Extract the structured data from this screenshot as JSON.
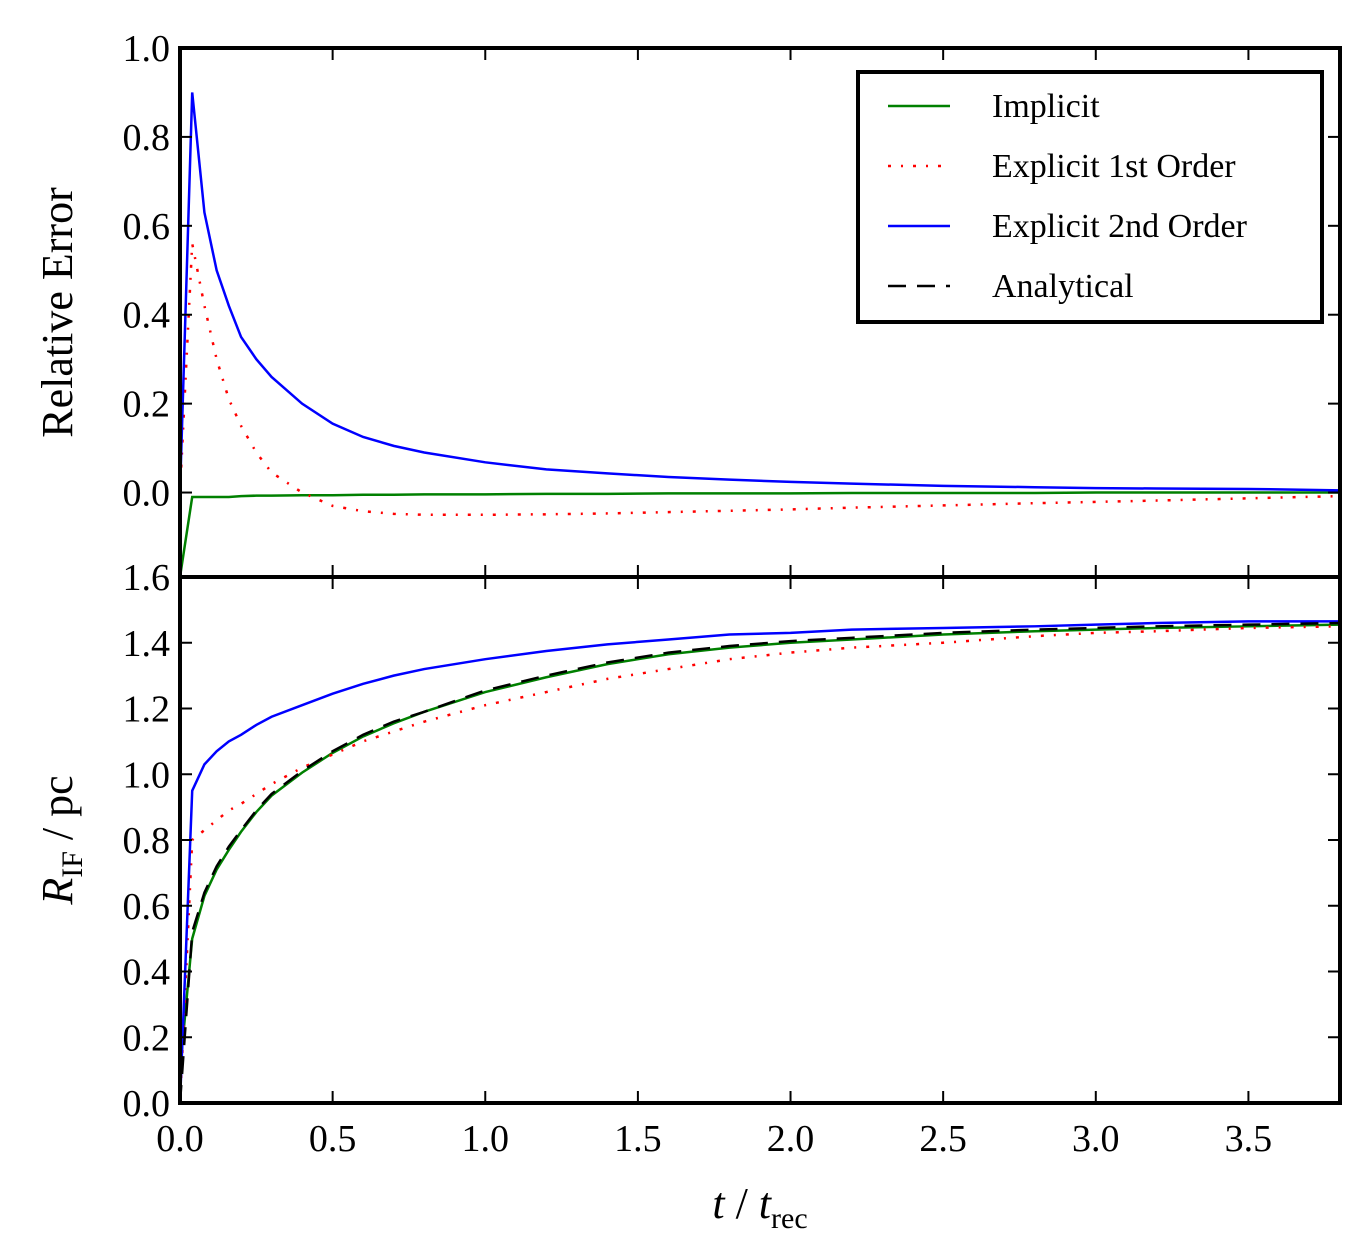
{
  "chart_data": [
    {
      "type": "line",
      "ylabel": "Relative Error",
      "legend": "upper right",
      "x": [
        0,
        0.04,
        0.08,
        0.12,
        0.16,
        0.2,
        0.25,
        0.3,
        0.4,
        0.5,
        0.6,
        0.7,
        0.8,
        1.0,
        1.2,
        1.4,
        1.6,
        1.8,
        2.0,
        2.2,
        2.5,
        2.8,
        3.0,
        3.2,
        3.5,
        3.8
      ],
      "xlim": [
        0,
        3.8
      ],
      "ylim": [
        -0.19,
        1.0
      ],
      "yticks": [
        {
          "value": 0,
          "label": "0.0"
        },
        0.2,
        0.4,
        0.6,
        0.8,
        {
          "value": 1,
          "label": "1.0"
        }
      ],
      "series": [
        {
          "color": "#008000",
          "linestyle": "solid",
          "values": [
            -0.19,
            -0.01,
            -0.01,
            -0.01,
            -0.01,
            -0.008,
            -0.007,
            -0.007,
            -0.006,
            -0.006,
            -0.005,
            -0.005,
            -0.004,
            -0.004,
            -0.003,
            -0.003,
            -0.002,
            -0.002,
            -0.002,
            -0.001,
            -0.001,
            -0.001,
            0,
            0,
            0,
            0
          ]
        },
        {
          "color": "#ff0000",
          "linestyle": "dashdot",
          "values": [
            0,
            0.56,
            0.42,
            0.3,
            0.21,
            0.15,
            0.09,
            0.045,
            0,
            -0.03,
            -0.042,
            -0.048,
            -0.05,
            -0.05,
            -0.049,
            -0.047,
            -0.044,
            -0.041,
            -0.038,
            -0.034,
            -0.029,
            -0.024,
            -0.021,
            -0.018,
            -0.013,
            -0.008
          ]
        },
        {
          "color": "#0000ff",
          "linestyle": "solid",
          "values": [
            0,
            0.9,
            0.63,
            0.5,
            0.42,
            0.35,
            0.3,
            0.26,
            0.2,
            0.155,
            0.125,
            0.105,
            0.09,
            0.068,
            0.052,
            0.043,
            0.035,
            0.029,
            0.024,
            0.02,
            0.015,
            0.012,
            0.01,
            0.009,
            0.008,
            0.005
          ]
        }
      ]
    },
    {
      "type": "line",
      "ylabel_parts": [
        "R",
        "IF",
        " / pc"
      ],
      "xlabel_parts": [
        "t",
        " / ",
        "t",
        "rec"
      ],
      "x": [
        0,
        0.04,
        0.08,
        0.12,
        0.16,
        0.2,
        0.25,
        0.3,
        0.4,
        0.5,
        0.6,
        0.7,
        0.8,
        1.0,
        1.2,
        1.4,
        1.6,
        1.8,
        2.0,
        2.2,
        2.5,
        2.8,
        3.0,
        3.2,
        3.5,
        3.8
      ],
      "xlim": [
        0,
        3.8
      ],
      "ylim": [
        0,
        1.6
      ],
      "xticks": [
        {
          "value": 0,
          "label": "0.0"
        },
        0.5,
        {
          "value": 1,
          "label": "1.0"
        },
        1.5,
        {
          "value": 2,
          "label": "2.0"
        },
        2.5,
        {
          "value": 3,
          "label": "3.0"
        },
        3.5
      ],
      "yticks": [
        {
          "value": 0,
          "label": "0.0"
        },
        0.2,
        0.4,
        0.6,
        0.8,
        {
          "value": 1,
          "label": "1.0"
        },
        1.2,
        1.4,
        1.6
      ],
      "series": [
        {
          "name": "Implicit",
          "color": "#008000",
          "linestyle": "solid",
          "values": [
            0.1,
            0.5,
            0.63,
            0.71,
            0.77,
            0.825,
            0.885,
            0.935,
            1.005,
            1.065,
            1.115,
            1.155,
            1.19,
            1.25,
            1.295,
            1.335,
            1.365,
            1.385,
            1.4,
            1.41,
            1.425,
            1.435,
            1.44,
            1.445,
            1.45,
            1.455
          ]
        },
        {
          "name": "Explicit 1st Order",
          "color": "#ff0000",
          "linestyle": "dashdot",
          "values": [
            0,
            0.8,
            0.83,
            0.86,
            0.89,
            0.91,
            0.94,
            0.97,
            1.02,
            1.06,
            1.1,
            1.13,
            1.16,
            1.21,
            1.25,
            1.29,
            1.32,
            1.35,
            1.37,
            1.385,
            1.4,
            1.42,
            1.43,
            1.435,
            1.445,
            1.45
          ]
        },
        {
          "name": "Explicit 2nd Order",
          "color": "#0000ff",
          "linestyle": "solid",
          "values": [
            0,
            0.95,
            1.03,
            1.07,
            1.1,
            1.12,
            1.15,
            1.175,
            1.21,
            1.245,
            1.275,
            1.3,
            1.32,
            1.35,
            1.375,
            1.395,
            1.41,
            1.425,
            1.43,
            1.44,
            1.445,
            1.45,
            1.455,
            1.46,
            1.465,
            1.465
          ]
        },
        {
          "name": "Analytical",
          "color": "#000000",
          "linestyle": "dashed",
          "values": [
            0,
            0.52,
            0.64,
            0.72,
            0.78,
            0.83,
            0.89,
            0.94,
            1.01,
            1.07,
            1.12,
            1.16,
            1.19,
            1.255,
            1.3,
            1.34,
            1.37,
            1.39,
            1.405,
            1.415,
            1.43,
            1.44,
            1.445,
            1.45,
            1.455,
            1.46
          ]
        }
      ]
    }
  ]
}
